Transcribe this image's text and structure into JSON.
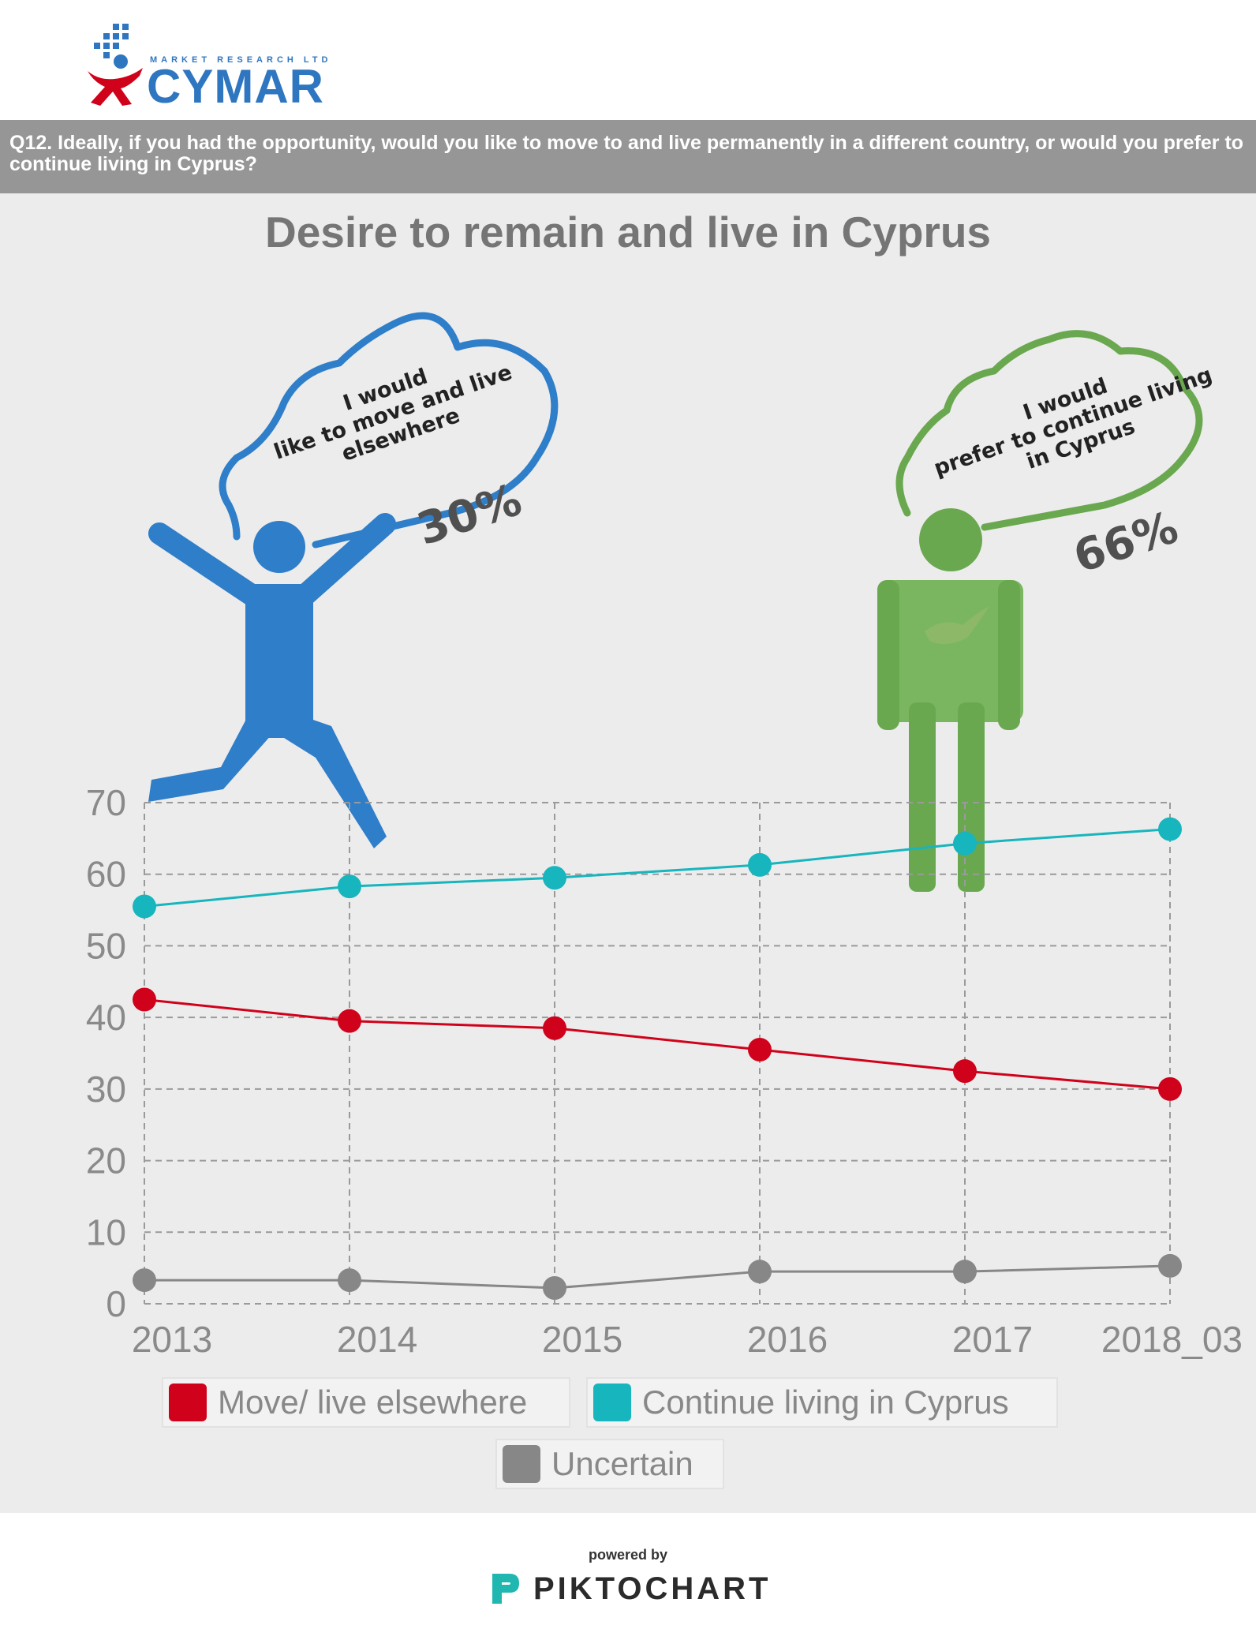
{
  "header": {
    "logo_tagline": "MARKET RESEARCH LTD",
    "logo_name": "CYMAR"
  },
  "question": "Q12. Ideally, if you had the opportunity, would you like to move to and live permanently in a different country, or would you prefer to continue living in Cyprus?",
  "illustrations": {
    "left_bubble_line1": "I would",
    "left_bubble_line2": "like to move and live",
    "left_bubble_line3": "elsewhere",
    "left_percent": "30%",
    "right_bubble_line1": "I would",
    "right_bubble_line2": "prefer to continue living",
    "right_bubble_line3": "in Cyprus",
    "right_percent": "66%"
  },
  "chart_data": {
    "type": "line",
    "title": "Desire to remain and live in Cyprus",
    "xlabel": "",
    "ylabel": "",
    "categories": [
      "2013",
      "2014",
      "2015",
      "2016",
      "2017",
      "2018_03"
    ],
    "ylim": [
      0,
      70
    ],
    "yticks": [
      "0",
      "10",
      "20",
      "30",
      "40",
      "50",
      "60",
      "70"
    ],
    "grid": true,
    "legend_position": "bottom",
    "series": [
      {
        "name": "Move/ live elsewhere",
        "color": "#d0021b",
        "values": [
          42.5,
          39.5,
          38.5,
          35.5,
          32.5,
          30
        ]
      },
      {
        "name": "Continue living in Cyprus",
        "color": "#17b5bd",
        "values": [
          55.5,
          58.3,
          59.5,
          61.3,
          64.3,
          66.3
        ]
      },
      {
        "name": "Uncertain",
        "color": "#878787",
        "values": [
          3.3,
          3.3,
          2.2,
          4.5,
          4.5,
          5.3
        ]
      }
    ]
  },
  "footer": {
    "powered_by": "powered by",
    "brand": "PIKTOCHART"
  }
}
